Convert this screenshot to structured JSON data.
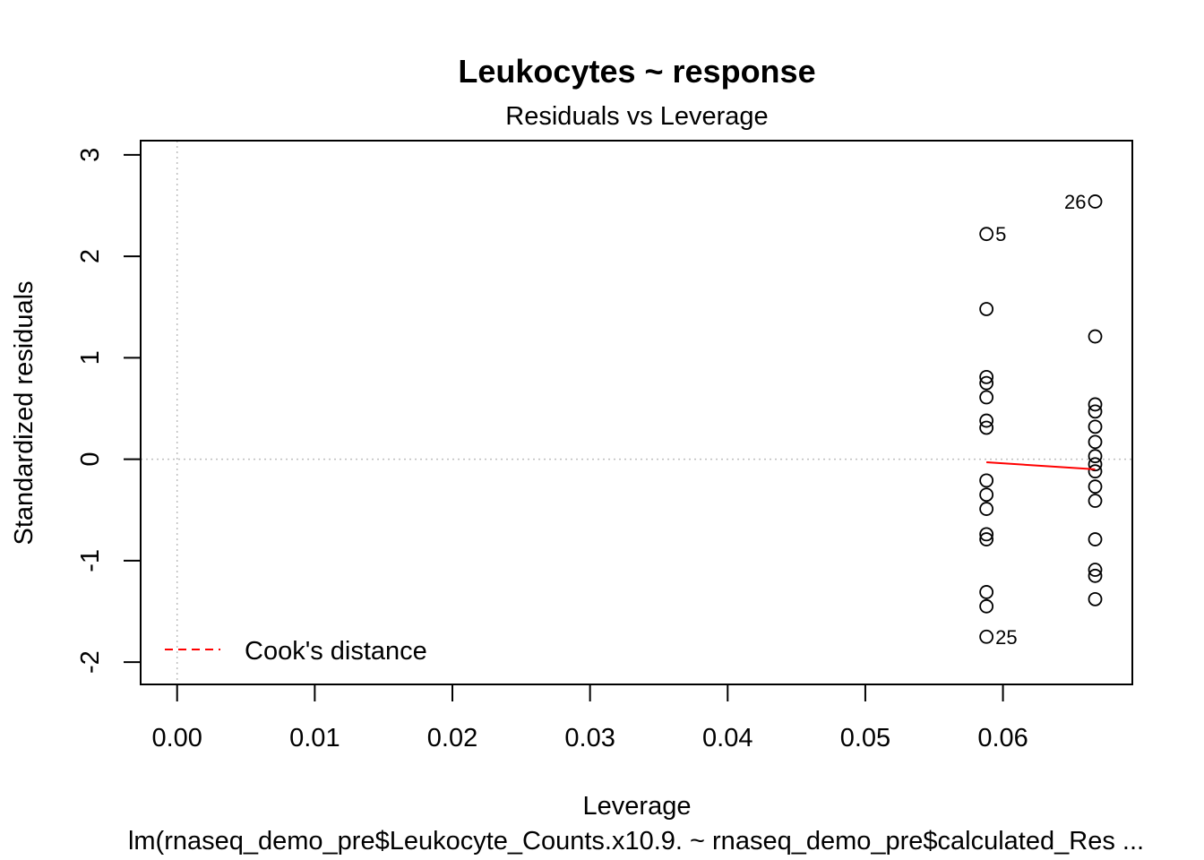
{
  "chart_data": {
    "type": "scatter",
    "title": "Leukocytes ~ response",
    "subtitle": "Residuals vs Leverage",
    "xlabel": "Leverage",
    "ylabel": "Standardized residuals",
    "caption": "lm(rnaseq_demo_pre$Leukocyte_Counts.x10.9. ~ rnaseq_demo_pre$calculated_Res ...",
    "xlim": [
      -0.00265,
      0.0694
    ],
    "ylim": [
      -2.22,
      3.14
    ],
    "x_ticks": [
      "0.00",
      "0.01",
      "0.02",
      "0.03",
      "0.04",
      "0.05",
      "0.06"
    ],
    "x_tick_values": [
      0,
      0.01,
      0.02,
      0.03,
      0.04,
      0.05,
      0.06
    ],
    "y_ticks": [
      "-2",
      "-1",
      "0",
      "1",
      "2",
      "3"
    ],
    "y_tick_values": [
      -2,
      -1,
      0,
      1,
      2,
      3
    ],
    "grid": false,
    "reference_lines": {
      "x": 0,
      "y": 0
    },
    "groups": [
      {
        "leverage": 0.0588,
        "residuals": [
          2.22,
          1.48,
          0.81,
          0.75,
          0.61,
          0.38,
          0.31,
          -0.21,
          -0.35,
          -0.49,
          -0.74,
          -0.79,
          -1.31,
          -1.45,
          -1.75
        ]
      },
      {
        "leverage": 0.0667,
        "residuals": [
          2.54,
          1.21,
          0.54,
          0.47,
          0.32,
          0.17,
          0.03,
          -0.05,
          -0.12,
          -0.27,
          -0.41,
          -0.79,
          -1.09,
          -1.15,
          -1.38
        ]
      }
    ],
    "point_labels": [
      {
        "label": "26",
        "x": 0.0667,
        "y": 2.54,
        "side": "left"
      },
      {
        "label": "5",
        "x": 0.0588,
        "y": 2.22,
        "side": "right"
      },
      {
        "label": "25",
        "x": 0.0588,
        "y": -1.75,
        "side": "right"
      }
    ],
    "smooth_line": {
      "x": [
        0.0588,
        0.0667
      ],
      "y": [
        -0.03,
        -0.1
      ],
      "color": "#ff0000"
    },
    "legend": {
      "position": "bottom-left",
      "entries": [
        {
          "label": "Cook's distance",
          "color": "#ff0000",
          "style": "dashed"
        }
      ]
    },
    "colors": {
      "points": "#000000",
      "smooth": "#ff0000",
      "reference": "#bebebe"
    }
  }
}
